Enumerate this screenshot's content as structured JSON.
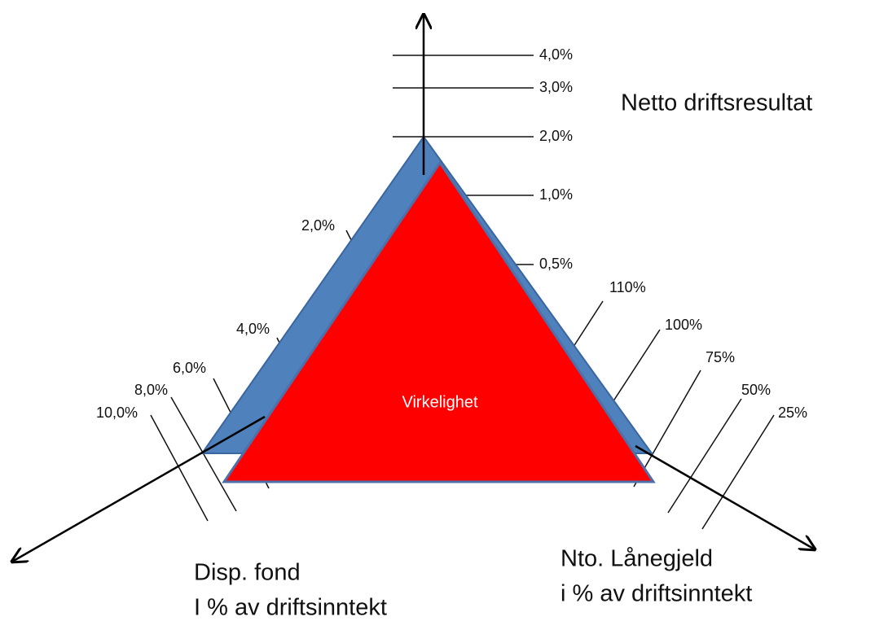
{
  "axes": [
    {
      "title": [
        "Netto driftsresultat"
      ],
      "ticks": [
        "4,0%",
        "3,0%",
        "2,0%",
        "1,0%",
        "0,5%"
      ]
    },
    {
      "title": [
        "Disp. fond",
        "I % av driftsinntekt"
      ],
      "ticks": [
        "2,0%",
        "4,0%",
        "6,0%",
        "8,0%",
        "10,0%"
      ]
    },
    {
      "title": [
        "Nto. Lånegjeld",
        "i % av driftsinntekt"
      ],
      "ticks": [
        "110%",
        "100%",
        "75%",
        "50%",
        "25%"
      ]
    }
  ],
  "center_label": "Virkelighet"
}
